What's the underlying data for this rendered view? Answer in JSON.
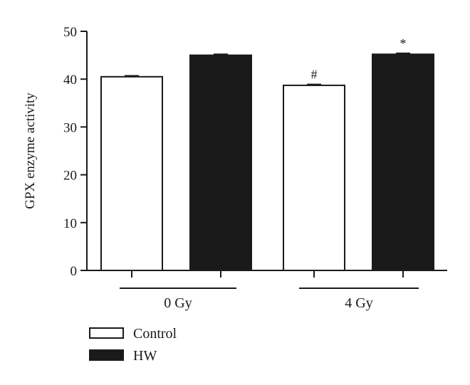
{
  "chart_data": {
    "type": "bar",
    "ylabel": "GPX enzyme activity",
    "ylim": [
      0,
      50
    ],
    "yticks": [
      0,
      10,
      20,
      30,
      40,
      50
    ],
    "groups": [
      "0 Gy",
      "4 Gy"
    ],
    "series": [
      {
        "name": "Control",
        "values": [
          40.5,
          38.7
        ],
        "color": "#ffffff",
        "errors": [
          0.2,
          0.2
        ]
      },
      {
        "name": "HW",
        "values": [
          45.0,
          45.2
        ],
        "color": "#1a1a1a",
        "errors": [
          0.2,
          0.2
        ]
      }
    ],
    "annotations": [
      {
        "group": "4 Gy",
        "series": "Control",
        "text": "#"
      },
      {
        "group": "4 Gy",
        "series": "HW",
        "text": "*"
      }
    ],
    "legend_position": "bottom-left",
    "grid": false
  }
}
